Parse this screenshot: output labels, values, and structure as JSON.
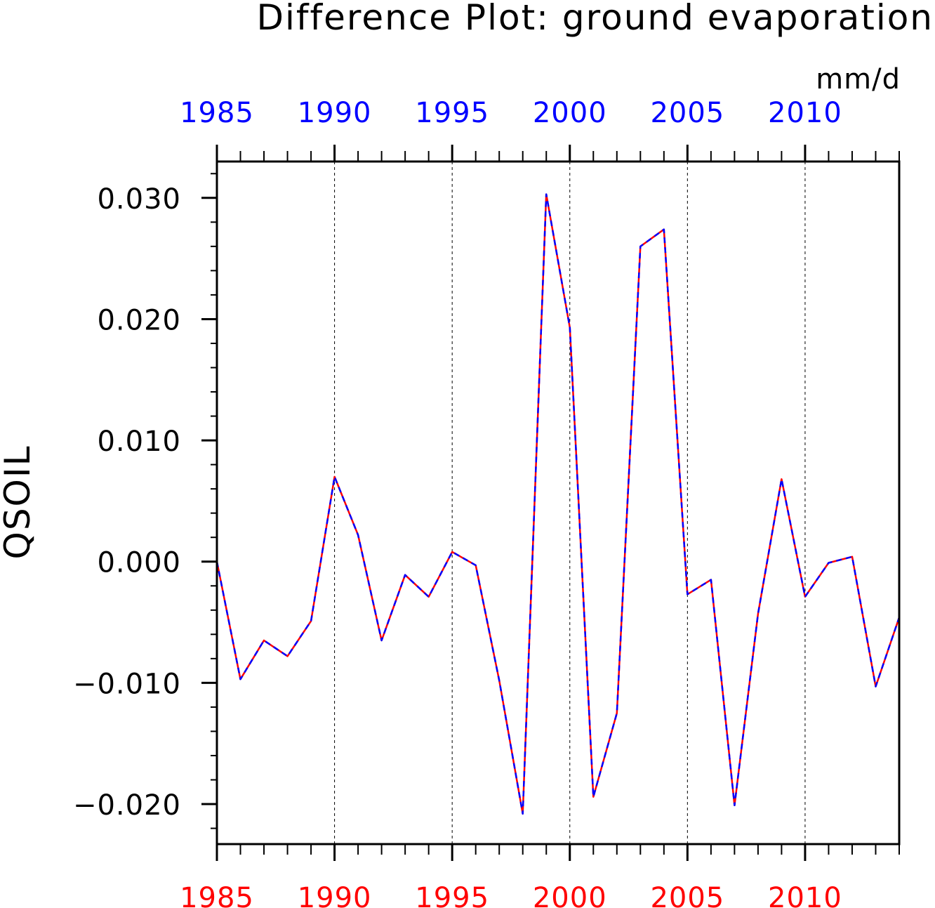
{
  "chart_data": {
    "type": "line",
    "title": "Difference Plot: ground evaporation",
    "units": "mm/d",
    "ylabel": "QSOIL",
    "xlabel": "",
    "xlim": [
      1985,
      2014
    ],
    "ylim": [
      -0.0233,
      0.033
    ],
    "x_ticks": [
      1985,
      1990,
      1995,
      2000,
      2005,
      2010
    ],
    "x_tick_labels_bottom": [
      "1985",
      "1990",
      "1995",
      "2000",
      "2005",
      "2010"
    ],
    "x_tick_labels_top": [
      "1985",
      "1990",
      "1995",
      "2000",
      "2005",
      "2010"
    ],
    "y_ticks": [
      -0.02,
      -0.01,
      0.0,
      0.01,
      0.02,
      0.03
    ],
    "y_tick_labels": [
      "−0.020",
      "−0.010",
      "0.000",
      "0.010",
      "0.020",
      "0.030"
    ],
    "grid": "vertical dashed at major x ticks",
    "x": [
      1985,
      1986,
      1987,
      1988,
      1989,
      1990,
      1991,
      1992,
      1993,
      1994,
      1995,
      1996,
      1997,
      1998,
      1999,
      2000,
      2001,
      2002,
      2003,
      2004,
      2005,
      2006,
      2007,
      2008,
      2009,
      2010,
      2011,
      2012,
      2013,
      2014
    ],
    "series": [
      {
        "color": "#ff0000",
        "style": "solid",
        "values": [
          0.0,
          -0.0097,
          -0.0065,
          -0.0078,
          -0.0049,
          0.007,
          0.0022,
          -0.0065,
          -0.0011,
          -0.0029,
          0.0008,
          -0.0003,
          -0.0098,
          -0.0208,
          0.0303,
          0.0193,
          -0.0194,
          -0.0125,
          0.026,
          0.0274,
          -0.0027,
          -0.0015,
          -0.0201,
          -0.0043,
          0.0068,
          -0.0029,
          -0.0001,
          0.0004,
          -0.0103,
          -0.0046
        ]
      },
      {
        "color": "#0000ff",
        "style": "dashed",
        "values": [
          0.0,
          -0.0097,
          -0.0065,
          -0.0078,
          -0.0049,
          0.007,
          0.0022,
          -0.0065,
          -0.0011,
          -0.0029,
          0.0008,
          -0.0003,
          -0.0098,
          -0.0208,
          0.0303,
          0.0193,
          -0.0194,
          -0.0125,
          0.026,
          0.0274,
          -0.0027,
          -0.0015,
          -0.0201,
          -0.0043,
          0.0068,
          -0.0029,
          -0.0001,
          0.0004,
          -0.0103,
          -0.0046
        ]
      }
    ],
    "colors": {
      "bottom_axis_labels": "#ff0000",
      "top_axis_labels": "#0000ff",
      "axes": "#000000"
    }
  }
}
